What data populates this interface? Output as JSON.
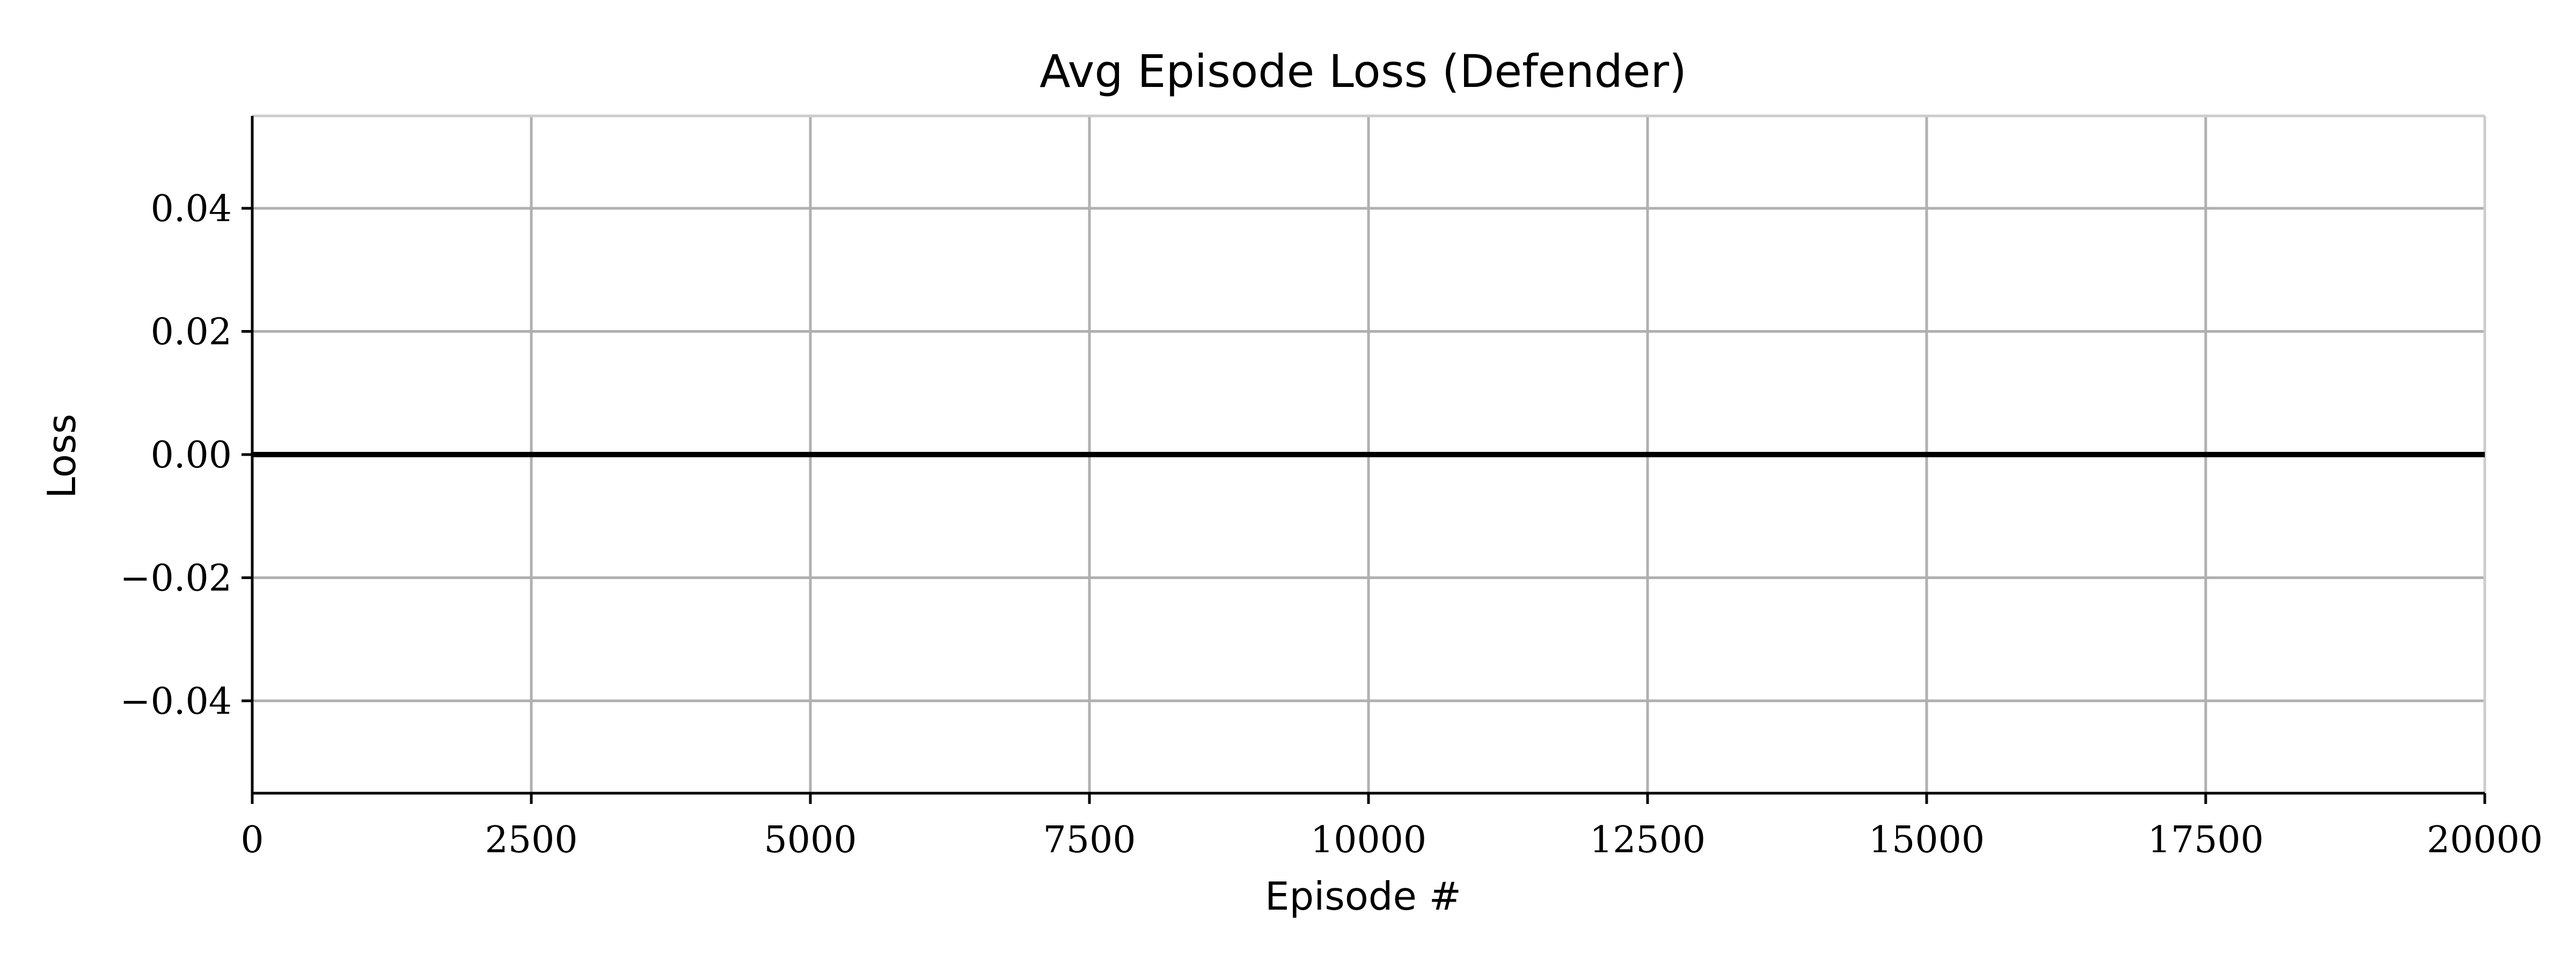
{
  "chart_data": {
    "type": "line",
    "title": "Avg Episode Loss (Defender)",
    "xlabel": "Episode #",
    "ylabel": "Loss",
    "xlim": [
      0,
      20000
    ],
    "ylim": [
      -0.055,
      0.055
    ],
    "xticks": [
      0,
      2500,
      5000,
      7500,
      10000,
      12500,
      15000,
      17500,
      20000
    ],
    "xtick_labels": [
      "0",
      "2500",
      "5000",
      "7500",
      "10000",
      "12500",
      "15000",
      "17500",
      "20000"
    ],
    "yticks": [
      0.04,
      0.02,
      0.0,
      -0.02,
      -0.04
    ],
    "ytick_labels": [
      "0.04",
      "0.02",
      "0.00",
      "−0.02",
      "−0.04"
    ],
    "grid": true,
    "series": [
      {
        "x": [
          0,
          20000
        ],
        "y": [
          0.0,
          0.0
        ],
        "color": "#000000"
      }
    ]
  }
}
